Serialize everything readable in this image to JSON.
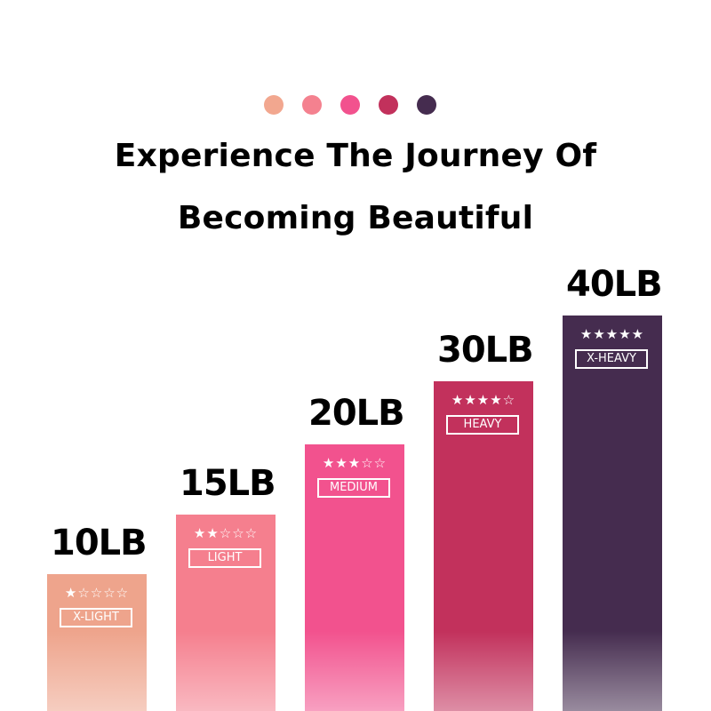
{
  "header": {
    "dot_colors": [
      "#f2a78f",
      "#f4818f",
      "#f2528e",
      "#c2315c",
      "#452c4f"
    ],
    "title_line1": "Experience The Journey Of",
    "title_line2": "Becoming Beautiful"
  },
  "chart_data": {
    "type": "bar",
    "categories": [
      "10LB",
      "15LB",
      "20LB",
      "30LB",
      "40LB"
    ],
    "values": [
      10,
      15,
      20,
      30,
      40
    ],
    "unit": "LB",
    "levels": [
      "X-LIGHT",
      "LIGHT",
      "MEDIUM",
      "HEAVY",
      "X-HEAVY"
    ],
    "star_ratings": [
      1,
      2,
      3,
      4,
      5
    ],
    "star_max": 5,
    "colors": [
      "#eea48c",
      "#f57f8e",
      "#f2528e",
      "#c2315c",
      "#452c4f"
    ],
    "grid": false
  }
}
